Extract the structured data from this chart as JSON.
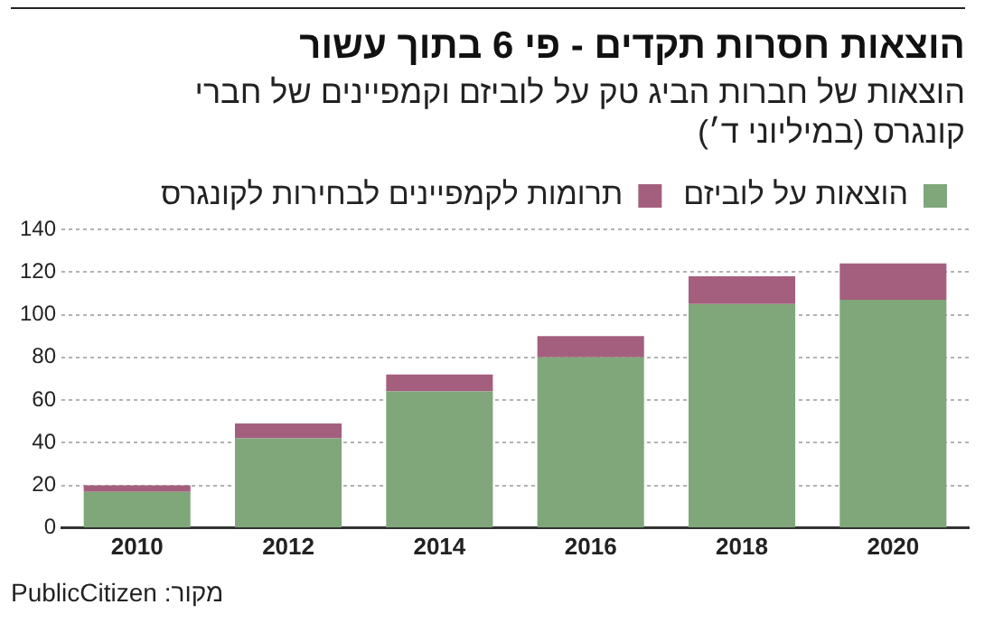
{
  "chart_data": {
    "type": "bar",
    "title": "הוצאות חסרות תקדים - פי 6 בתוך עשור",
    "subtitle": "הוצאות של חברות הביג טק על לוביזם וקמפיינים של חברי קונגרס (במיליוני ד׳)",
    "categories": [
      "2010",
      "2012",
      "2014",
      "2016",
      "2018",
      "2020"
    ],
    "series": [
      {
        "name": "הוצאות על לוביזם",
        "color": "#7fa77a",
        "values": [
          17,
          42,
          64,
          80,
          105,
          107
        ]
      },
      {
        "name": "תרומות לקמפיינים לבחירות לקונגרס",
        "color": "#a45f7e",
        "values": [
          3,
          7,
          8,
          10,
          13,
          17
        ]
      }
    ],
    "stacked": true,
    "ylim": [
      0,
      140
    ],
    "yticks": [
      0,
      20,
      40,
      60,
      80,
      100,
      120,
      140
    ],
    "grid": "y",
    "legend": "top right",
    "annotations": [
      "מקור: PublicCitizen"
    ]
  }
}
